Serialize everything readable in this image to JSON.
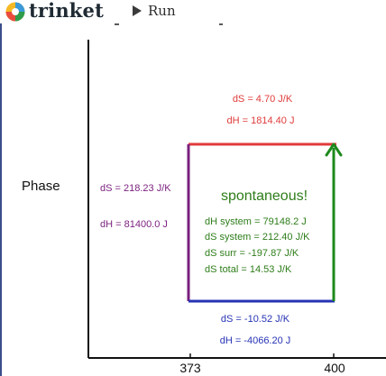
{
  "header": {
    "logo_text": "trinket",
    "run_label": "Run",
    "logo_colors": [
      "#f6b923",
      "#3a9ad9",
      "#2e9c4a",
      "#e84c3d"
    ]
  },
  "diagram": {
    "row_label": "Phase",
    "x_ticks": [
      "373",
      "400"
    ],
    "top_edge": {
      "ds": "dS = 4.70 J/K",
      "dh": "dH = 1814.40 J",
      "color": "#e03b3b"
    },
    "left_edge": {
      "ds": "dS = 218.23 J/K",
      "dh": "dH = 81400.0 J",
      "color": "#7a1f7e"
    },
    "bottom_edge": {
      "ds": "dS = -10.52 J/K",
      "dh": "dH = -4066.20 J",
      "color": "#2633b5"
    },
    "right_edge": {
      "color": "#1d8a1d"
    },
    "verdict": {
      "title": "spontaneous!",
      "lines": [
        "dH system = 79148.2 J",
        "dS system = 212.40 J/K",
        "dS surr = -197.87 J/K",
        "dS total = 14.53 J/K"
      ],
      "color": "#2e7d1a"
    }
  }
}
